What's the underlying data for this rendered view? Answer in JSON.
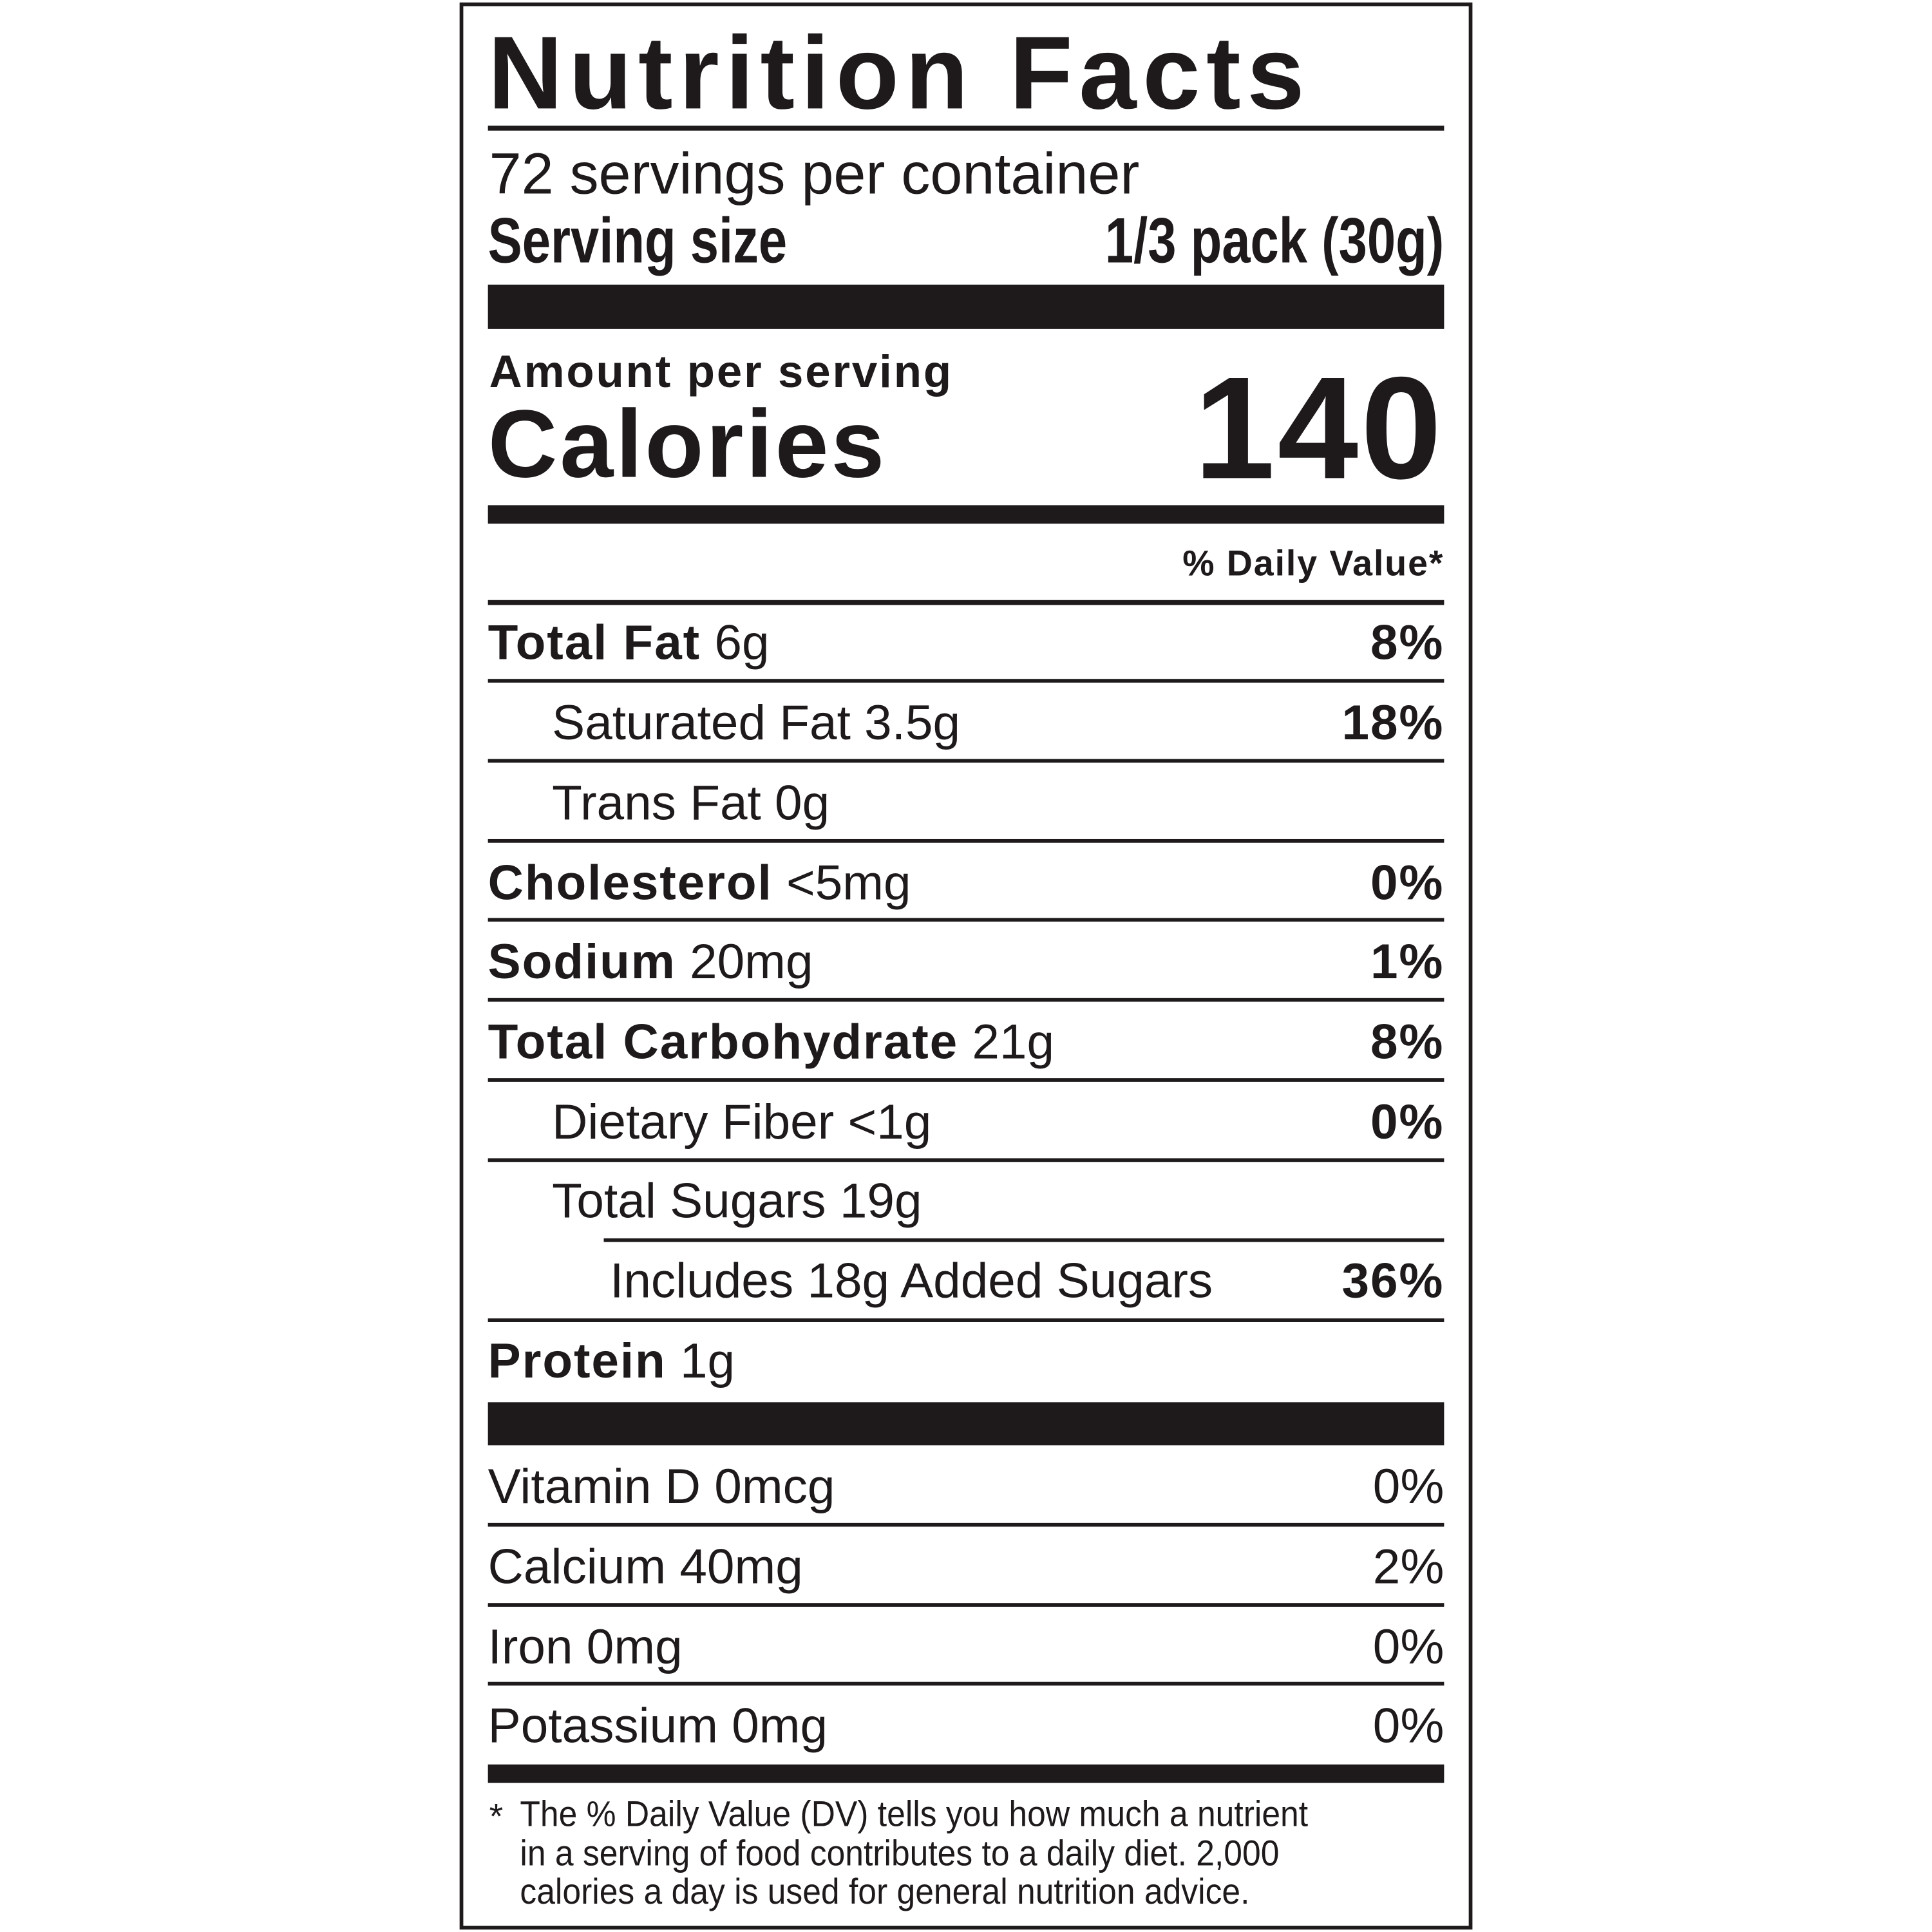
{
  "title": "Nutrition Facts",
  "servings_per_container": "72 servings per container",
  "serving_size_label": "Serving size",
  "serving_size_value": "1/3 pack (30g)",
  "amount_per_serving": "Amount per serving",
  "calories_label": "Calories",
  "calories_value": "140",
  "daily_value_header": "% Daily Value*",
  "nutrients": [
    {
      "name": "Total Fat",
      "amount": "6g",
      "dv": "8%"
    },
    {
      "name": "Saturated Fat 3.5g",
      "dv": "18%"
    },
    {
      "name": "Trans Fat 0g",
      "dv": ""
    },
    {
      "name": "Cholesterol",
      "amount": "<5mg",
      "dv": "0%"
    },
    {
      "name": "Sodium",
      "amount": "20mg",
      "dv": "1%"
    },
    {
      "name": "Total Carbohydrate",
      "amount": "21g",
      "dv": "8%"
    },
    {
      "name": "Dietary Fiber <1g",
      "dv": "0%"
    },
    {
      "name": "Total Sugars 19g",
      "dv": ""
    },
    {
      "name": "Includes 18g Added Sugars",
      "dv": "36%"
    },
    {
      "name": "Protein",
      "amount": "1g",
      "dv": ""
    }
  ],
  "vitamins": [
    {
      "name": "Vitamin D 0mcg",
      "dv": "0%"
    },
    {
      "name": "Calcium 40mg",
      "dv": "2%"
    },
    {
      "name": "Iron 0mg",
      "dv": "0%"
    },
    {
      "name": "Potassium 0mg",
      "dv": "0%"
    }
  ],
  "footnote": {
    "asterisk": "*",
    "lines": [
      "The % Daily Value (DV) tells you how much a nutrient",
      "in a serving of food contributes to a daily diet. 2,000",
      "calories a day is used for general nutrition advice."
    ]
  }
}
